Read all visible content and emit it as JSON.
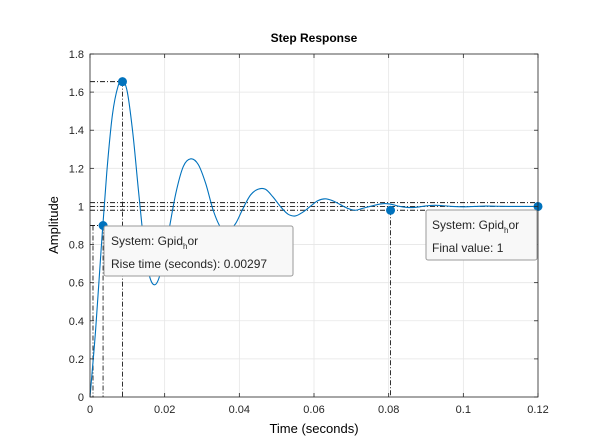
{
  "chart_data": {
    "type": "line",
    "title": "Step Response",
    "xlabel": "Time (seconds)",
    "ylabel": "Amplitude",
    "xlim": [
      0,
      0.12
    ],
    "ylim": [
      0,
      1.8
    ],
    "xticks": [
      0,
      0.02,
      0.04,
      0.06,
      0.08,
      0.1,
      0.12
    ],
    "xtick_labels": [
      "0",
      "0.02",
      "0.04",
      "0.06",
      "0.08",
      "0.1",
      "0.12"
    ],
    "yticks": [
      0,
      0.2,
      0.4,
      0.6,
      0.8,
      1,
      1.2,
      1.4,
      1.6,
      1.8
    ],
    "ytick_labels": [
      "0",
      "0.2",
      "0.4",
      "0.6",
      "0.8",
      "1",
      "1.2",
      "1.4",
      "1.6",
      "1.8"
    ],
    "grid": true,
    "line_color": "#0072bd",
    "series": [
      {
        "x": [
          0,
          0.0015,
          0.003,
          0.0045,
          0.006,
          0.0075,
          0.0087,
          0.01,
          0.0115,
          0.013,
          0.0145,
          0.016,
          0.0175,
          0.019,
          0.021,
          0.023,
          0.025,
          0.027,
          0.029,
          0.031,
          0.033,
          0.035,
          0.037,
          0.039,
          0.041,
          0.043,
          0.045,
          0.047,
          0.049,
          0.051,
          0.053,
          0.055,
          0.057,
          0.059,
          0.061,
          0.063,
          0.065,
          0.067,
          0.069,
          0.071,
          0.073,
          0.075,
          0.077,
          0.079,
          0.081,
          0.083,
          0.085,
          0.087,
          0.089,
          0.091,
          0.094,
          0.097,
          0.1,
          0.103,
          0.106,
          0.109,
          0.112,
          0.115,
          0.118,
          0.12
        ],
        "y": [
          0,
          0.35,
          0.78,
          1.18,
          1.48,
          1.63,
          1.66,
          1.6,
          1.38,
          1.08,
          0.8,
          0.63,
          0.59,
          0.66,
          0.86,
          1.07,
          1.21,
          1.25,
          1.22,
          1.12,
          0.98,
          0.89,
          0.87,
          0.91,
          0.99,
          1.06,
          1.09,
          1.09,
          1.05,
          1.0,
          0.96,
          0.95,
          0.97,
          1.0,
          1.03,
          1.04,
          1.03,
          1.01,
          0.99,
          0.98,
          0.99,
          1.0,
          1.01,
          1.015,
          1.01,
          1.0,
          0.995,
          0.995,
          1.0,
          1.005,
          1.005,
          1.0,
          0.998,
          1.0,
          1.002,
          1.001,
          1.0,
          1.0,
          1.0,
          1.0
        ]
      }
    ],
    "markers": [
      {
        "name": "rise-start-point",
        "x": 0.0035,
        "y": 0.9
      },
      {
        "name": "peak-point",
        "x": 0.0087,
        "y": 1.655
      },
      {
        "name": "settling-point",
        "x": 0.0805,
        "y": 0.98
      },
      {
        "name": "final-value-point",
        "x": 0.12,
        "y": 1.0
      }
    ],
    "reference_lines": {
      "rise_x": [
        0.0008,
        0.0035
      ],
      "rise_y": 0.9,
      "peak": {
        "x": 0.0087,
        "y": 1.655
      },
      "settling_band": [
        0.98,
        1.02
      ],
      "settling_x": 0.0805,
      "final_value": 1.0
    },
    "datatips": [
      {
        "name": "rise-time-datatip",
        "system_label": "System: Gpid",
        "system_sub": "h",
        "system_suffix": "or",
        "metric_label": "Rise time (seconds): 0.00297"
      },
      {
        "name": "final-value-datatip",
        "system_label": "System: Gpid",
        "system_sub": "h",
        "system_suffix": "or",
        "metric_label": "Final value: 1"
      }
    ]
  }
}
